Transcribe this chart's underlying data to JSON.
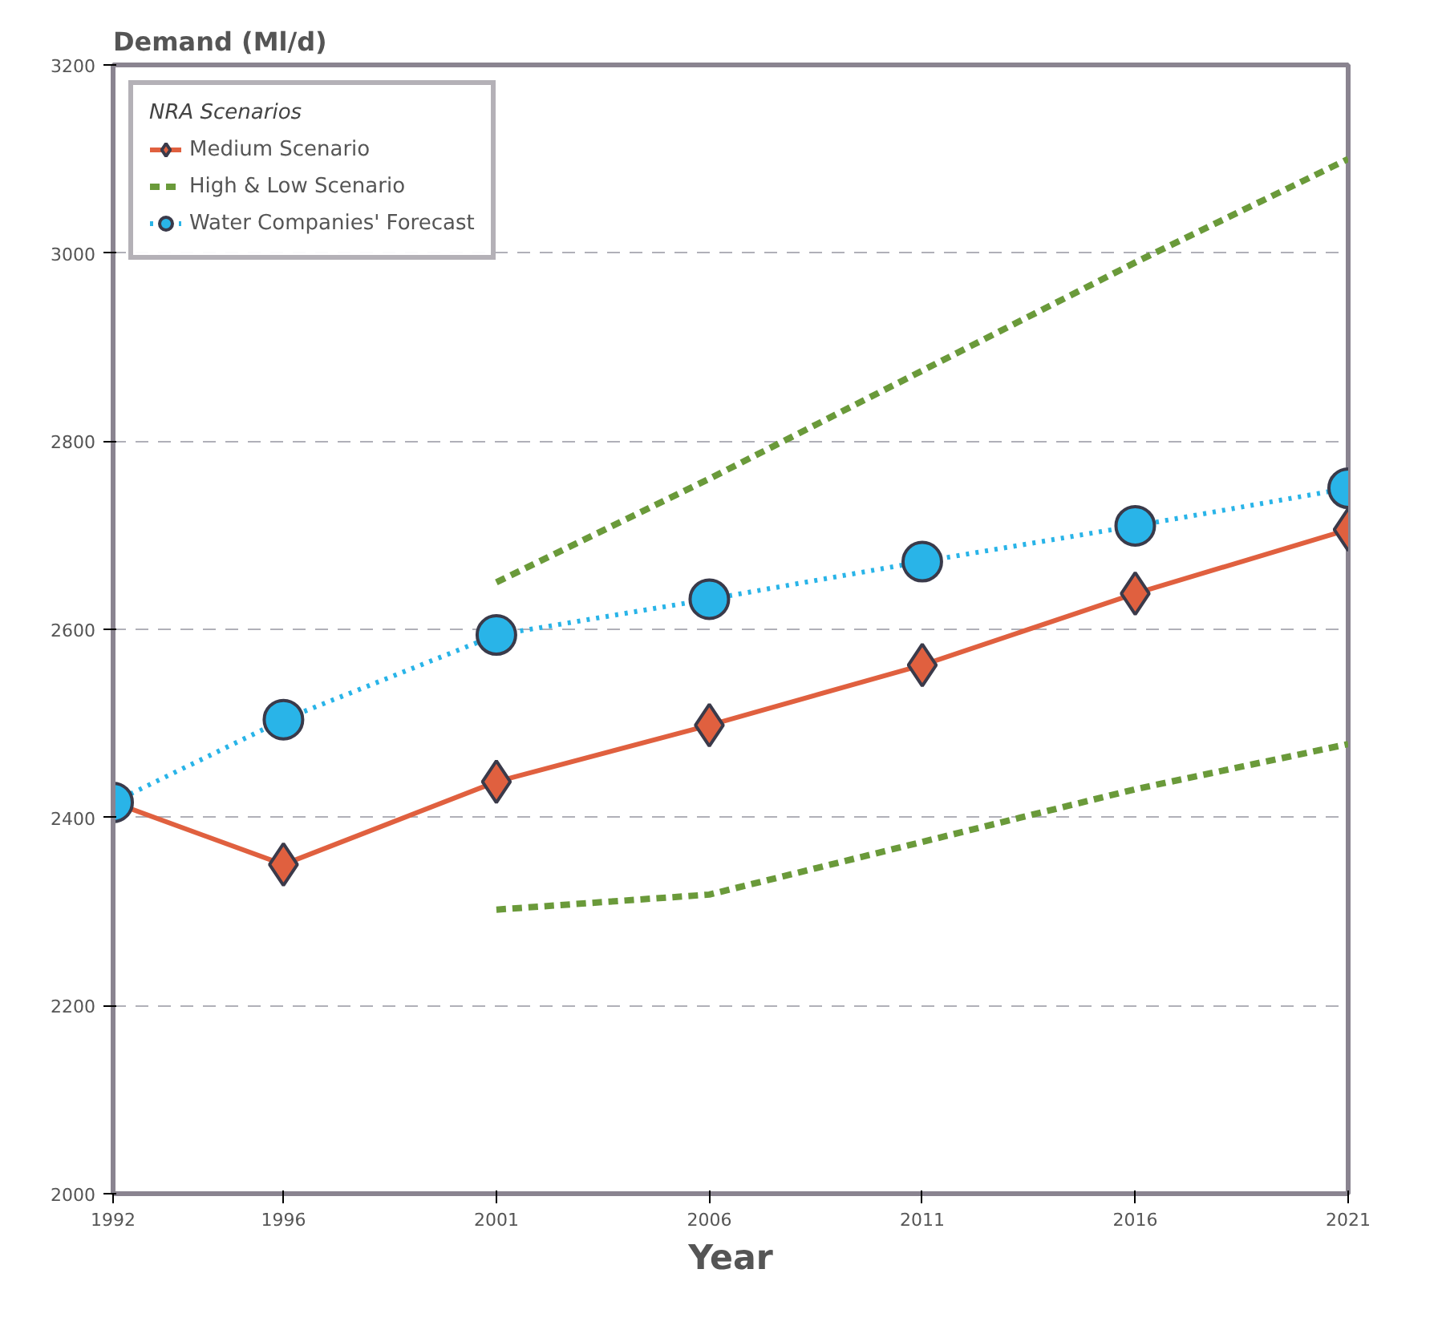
{
  "chart_data": {
    "type": "line",
    "ylabel": "Demand (Ml/d)",
    "xlabel": "Year",
    "legend_title": "NRA Scenarios",
    "xlim": [
      1992,
      2021
    ],
    "xticks": [
      1992,
      1996,
      2001,
      2006,
      2011,
      2016,
      2021
    ],
    "ylim": [
      2000,
      3200
    ],
    "yticks": [
      2000,
      2200,
      2400,
      2600,
      2800,
      3000,
      3200
    ],
    "grid": "y",
    "legend": "top left",
    "series": [
      {
        "name": "Medium Scenario",
        "color": "#e0603f",
        "marker": "diamond",
        "line_style": "solid",
        "x": [
          1992,
          1996,
          2001,
          2006,
          2011,
          2016,
          2021
        ],
        "values": [
          2416,
          2350,
          2438,
          2498,
          2562,
          2638,
          2706
        ]
      },
      {
        "name": "High & Low Scenario",
        "color": "#6a9a3a",
        "marker": "none",
        "line_style": "dashed",
        "x": [
          2001,
          2006,
          2011,
          2016,
          2021
        ],
        "values": [
          2650,
          2760,
          2875,
          2990,
          3100
        ]
      },
      {
        "color": "#6a9a3a",
        "marker": "none",
        "line_style": "dashed",
        "x": [
          2001,
          2006,
          2011,
          2016,
          2021
        ],
        "values": [
          2302,
          2318,
          2374,
          2430,
          2478
        ]
      },
      {
        "name": "Water Companies' Forecast",
        "color": "#29b4e8",
        "marker": "circle",
        "line_style": "dotted",
        "x": [
          1992,
          1996,
          2001,
          2006,
          2011,
          2016,
          2021
        ],
        "values": [
          2416,
          2504,
          2594,
          2632,
          2672,
          2710,
          2750
        ]
      }
    ]
  }
}
